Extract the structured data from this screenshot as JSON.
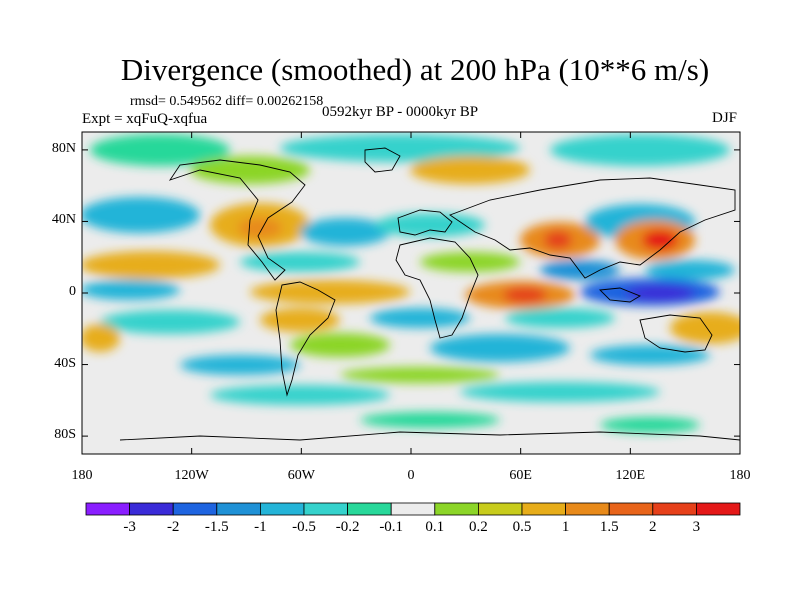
{
  "header": {
    "title": "Divergence (smoothed) at 200 hPa (10**6 m/s)",
    "stats": "rmsd= 0.549562 diff= 0.00262158",
    "experiment": "Expt = xqFuQ-xqfua",
    "period": "0592kyr BP - 0000kyr BP",
    "season": "DJF"
  },
  "axes": {
    "lat_labels": [
      "80N",
      "40N",
      "0",
      "40S",
      "80S"
    ],
    "lat_values": [
      80,
      40,
      0,
      -40,
      -80
    ],
    "lon_labels": [
      "180",
      "120W",
      "60W",
      "0",
      "60E",
      "120E",
      "180"
    ],
    "lon_values": [
      -180,
      -120,
      -60,
      0,
      60,
      120,
      180
    ],
    "lat_range": [
      -90,
      90
    ],
    "lon_range": [
      -180,
      180
    ]
  },
  "colorbar": {
    "labels": [
      "-3",
      "-2",
      "-1.5",
      "-1",
      "-0.5",
      "-0.2",
      "-0.1",
      "0.1",
      "0.2",
      "0.5",
      "1",
      "1.5",
      "2",
      "3"
    ],
    "colors": [
      "#8a1eff",
      "#3a2bd8",
      "#1e64e0",
      "#1f91d6",
      "#24b4d8",
      "#35d2cc",
      "#28d89a",
      "#ececec",
      "#8cd528",
      "#c8cc1c",
      "#e7ad1a",
      "#e88a1a",
      "#e8641a",
      "#e6401a",
      "#e41818"
    ]
  }
}
